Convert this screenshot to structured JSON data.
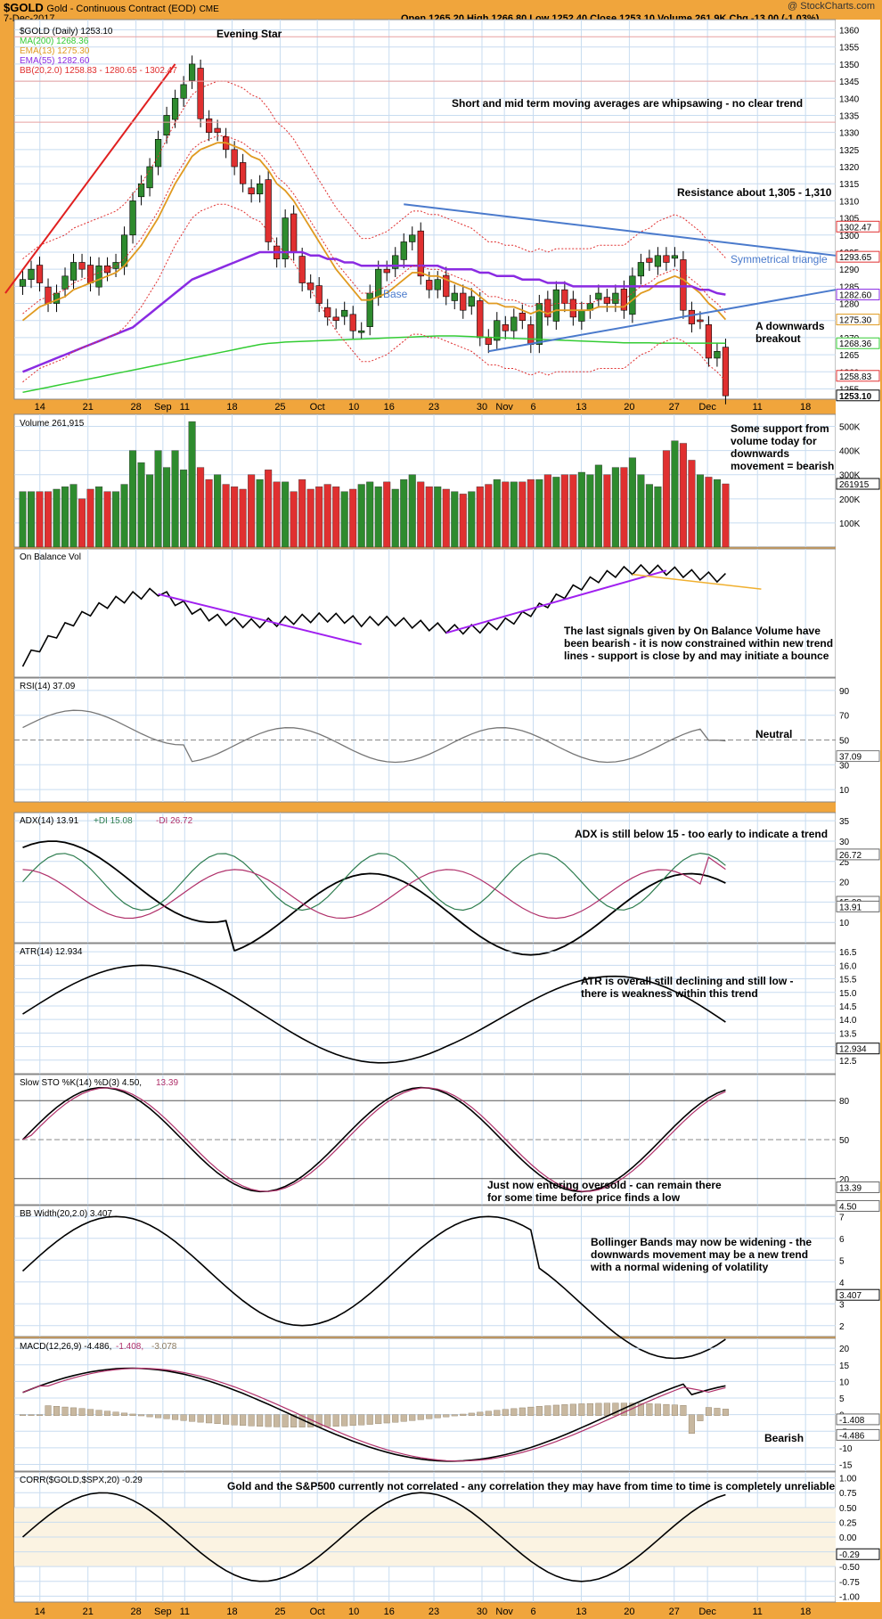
{
  "header": {
    "symbol": "$GOLD",
    "name": "Gold - Continuous Contract (EOD)",
    "exchange": "CME",
    "date": "7-Dec-2017",
    "quote": "Open 1265.20  High 1266.80  Low 1252.40  Close 1253.10  Volume 261.9K  Chg -13.00 (-1.03%)",
    "watermark": "@ StockCharts.com"
  },
  "colors": {
    "up": "#2e8b2e",
    "down": "#e03030",
    "ma200": "#33cc33",
    "ema13": "#e09a20",
    "ema55": "#8a2be2",
    "bb": "#e03030",
    "trend_blue": "#4a7acc",
    "purple_line": "#a020f0",
    "orange_line": "#f0b030",
    "red_line": "#e02020",
    "grid": "#c8dcf0"
  },
  "x_axis": {
    "labels": [
      "14",
      "21",
      "28",
      "Sep",
      "11",
      "18",
      "25",
      "Oct",
      "10",
      "16",
      "23",
      "30",
      "Nov",
      "6",
      "13",
      "20",
      "27",
      "Dec",
      "11",
      "18"
    ]
  },
  "panels": {
    "price": {
      "legend": [
        "$GOLD (Daily) 1253.10",
        "MA(200) 1268.36",
        "EMA(13) 1275.30",
        "EMA(55) 1282.60",
        "BB(20,2.0) 1258.83 - 1280.65 - 1302.47"
      ],
      "ticks": [
        "1360",
        "1355",
        "1350",
        "1345",
        "1340",
        "1335",
        "1330",
        "1325",
        "1320",
        "1315",
        "1310",
        "1305",
        "1300",
        "1295",
        "1290",
        "1285",
        "1280",
        "1275",
        "1270",
        "1265",
        "1260",
        "1255"
      ],
      "right_badges": [
        "1302.47",
        "1293.65",
        "1282.60",
        "1275.30",
        "1268.36",
        "1258.83",
        "1253.10"
      ],
      "annotations": {
        "evening_star": "Evening Star",
        "whipsaw": "Short and mid term moving averages are whipsawing - no clear trend",
        "resistance": "Resistance about 1,305 - 1,310",
        "triangle": "Symmetrical triangle",
        "base": "Base",
        "breakout_1": "A downwards",
        "breakout_2": "breakout"
      }
    },
    "volume": {
      "legend": "Volume 261,915",
      "ticks": [
        "500K",
        "400K",
        "300K",
        "200K",
        "100K"
      ],
      "badge": "261915",
      "note": [
        "Some support from",
        "volume today for",
        "downwards",
        "movement = bearish"
      ]
    },
    "obv": {
      "legend": "On Balance Vol",
      "note": [
        "The last signals given by On Balance Volume have",
        "been bearish - it is now constrained within new trend",
        "lines - support is close by and may initiate a bounce"
      ]
    },
    "rsi": {
      "legend": "RSI(14) 37.09",
      "ticks": [
        "90",
        "70",
        "50",
        "30",
        "10"
      ],
      "badge": "37.09",
      "note": "Neutral"
    },
    "adx": {
      "legend_adx": "ADX(14) 13.91",
      "legend_pdi": "+DI 15.08",
      "legend_mdi": "-DI 26.72",
      "ticks": [
        "35",
        "30",
        "25",
        "20",
        "15",
        "10"
      ],
      "badges": [
        "26.72",
        "15.08",
        "13.91"
      ],
      "note": "ADX is still below 15 - too early to indicate a trend"
    },
    "atr": {
      "legend": "ATR(14) 12.934",
      "ticks": [
        "16.5",
        "16.0",
        "15.5",
        "15.0",
        "14.5",
        "14.0",
        "13.5",
        "13.0",
        "12.5"
      ],
      "badge": "12.934",
      "note": [
        "ATR is overall still declining and still low -",
        "there is weakness within this trend"
      ]
    },
    "sto": {
      "legend_k": "Slow STO %K(14) %D(3) 4.50,",
      "legend_d": "13.39",
      "ticks": [
        "80",
        "50",
        "20"
      ],
      "badges": [
        "13.39",
        "4.50"
      ],
      "note": [
        "Just now entering oversold - can remain there",
        "for some time before price finds a low"
      ]
    },
    "bbw": {
      "legend": "BB Width(20,2.0) 3.407",
      "ticks": [
        "7",
        "6",
        "5",
        "4",
        "3",
        "2"
      ],
      "badge": "3.407",
      "note": [
        "Bollinger Bands may now be widening - the",
        "downwards movement may be a new trend",
        "with a normal widening of volatility"
      ]
    },
    "macd": {
      "legend_macd": "MACD(12,26,9) -4.486,",
      "legend_sig": "-1.408,",
      "legend_hist": "-3.078",
      "ticks": [
        "20",
        "15",
        "10",
        "5",
        "0",
        "-5",
        "-10",
        "-15"
      ],
      "badges": [
        "-1.408",
        "-4.486"
      ],
      "note": "Bearish"
    },
    "corr": {
      "legend": "CORR($GOLD,$SPX,20) -0.29",
      "ticks": [
        "1.00",
        "0.75",
        "0.50",
        "0.25",
        "0.00",
        "-0.25",
        "-0.50",
        "-0.75",
        "-1.00"
      ],
      "badge": "-0.29",
      "note": "Gold and the S&P500 currently not correlated - any correlation they may have from time to time is completely unreliable"
    }
  },
  "chart_data": {
    "type": "line",
    "title": "$GOLD Gold - Continuous Contract (EOD) CME",
    "x": [
      "2017-08-10",
      "2017-08-11",
      "2017-08-14",
      "2017-08-15",
      "2017-08-16",
      "2017-08-17",
      "2017-08-18",
      "2017-08-21",
      "2017-08-22",
      "2017-08-23",
      "2017-08-24",
      "2017-08-25",
      "2017-08-28",
      "2017-08-29",
      "2017-08-30",
      "2017-08-31",
      "2017-09-01",
      "2017-09-05",
      "2017-09-06",
      "2017-09-07",
      "2017-09-08",
      "2017-09-11",
      "2017-09-12",
      "2017-09-13",
      "2017-09-14",
      "2017-09-15",
      "2017-09-18",
      "2017-09-19",
      "2017-09-20",
      "2017-09-21",
      "2017-09-22",
      "2017-09-25",
      "2017-09-26",
      "2017-09-27",
      "2017-09-28",
      "2017-09-29",
      "2017-10-02",
      "2017-10-03",
      "2017-10-04",
      "2017-10-05",
      "2017-10-06",
      "2017-10-09",
      "2017-10-10",
      "2017-10-11",
      "2017-10-12",
      "2017-10-13",
      "2017-10-16",
      "2017-10-17",
      "2017-10-18",
      "2017-10-19",
      "2017-10-20",
      "2017-10-23",
      "2017-10-24",
      "2017-10-25",
      "2017-10-26",
      "2017-10-27",
      "2017-10-30",
      "2017-10-31",
      "2017-11-01",
      "2017-11-02",
      "2017-11-03",
      "2017-11-06",
      "2017-11-07",
      "2017-11-08",
      "2017-11-09",
      "2017-11-10",
      "2017-11-13",
      "2017-11-14",
      "2017-11-15",
      "2017-11-16",
      "2017-11-17",
      "2017-11-20",
      "2017-11-21",
      "2017-11-22",
      "2017-11-24",
      "2017-11-27",
      "2017-11-28",
      "2017-11-29",
      "2017-11-30",
      "2017-12-01",
      "2017-12-04",
      "2017-12-05",
      "2017-12-06",
      "2017-12-07"
    ],
    "series": [
      {
        "name": "$GOLD",
        "values": [
          1287,
          1290,
          1286,
          1280,
          1283,
          1288,
          1292,
          1290,
          1286,
          1291,
          1289,
          1292,
          1300,
          1310,
          1315,
          1320,
          1328,
          1335,
          1340,
          1344,
          1350,
          1334,
          1330,
          1330,
          1325,
          1320,
          1315,
          1312,
          1315,
          1298,
          1293,
          1305,
          1295,
          1286,
          1284,
          1280,
          1276,
          1275,
          1278,
          1272,
          1272,
          1283,
          1290,
          1289,
          1294,
          1298,
          1300,
          1288,
          1284,
          1287,
          1282,
          1283,
          1278,
          1282,
          1270,
          1268,
          1275,
          1272,
          1276,
          1275,
          1268,
          1280,
          1276,
          1284,
          1280,
          1276,
          1278,
          1280,
          1283,
          1280,
          1283,
          1278,
          1288,
          1292,
          1292,
          1294,
          1292,
          1294,
          1278,
          1274,
          1275,
          1264,
          1266,
          1253
        ]
      },
      {
        "name": "MA(200)",
        "values": [
          1254,
          1254.5,
          1255,
          1255.5,
          1256,
          1256.5,
          1257,
          1257.5,
          1258,
          1258.5,
          1259,
          1259.5,
          1260,
          1260.5,
          1261,
          1261.5,
          1262,
          1262.5,
          1263,
          1263.5,
          1264,
          1264.5,
          1265,
          1265.5,
          1266,
          1266.5,
          1267,
          1267.5,
          1268,
          1268.3,
          1268.5,
          1268.7,
          1268.8,
          1268.9,
          1269,
          1269.1,
          1269.2,
          1269.3,
          1269.4,
          1269.5,
          1269.6,
          1269.7,
          1269.8,
          1269.9,
          1270,
          1270.1,
          1270.2,
          1270.3,
          1270.4,
          1270.5,
          1270.5,
          1270.5,
          1270.4,
          1270.3,
          1270.2,
          1270.1,
          1270,
          1269.9,
          1269.8,
          1269.7,
          1269.6,
          1269.5,
          1269.4,
          1269.3,
          1269.2,
          1269.1,
          1269,
          1268.9,
          1268.8,
          1268.7,
          1268.6,
          1268.5,
          1268.5,
          1268.5,
          1268.5,
          1268.4,
          1268.4,
          1268.4,
          1268.4,
          1268.4,
          1268.4,
          1268.4,
          1268.4,
          1268.36
        ]
      },
      {
        "name": "EMA(13)",
        "values": [
          1275,
          1277,
          1279,
          1280,
          1281,
          1282,
          1284,
          1285,
          1286,
          1287,
          1288,
          1289,
          1291,
          1294,
          1297,
          1301,
          1305,
          1310,
          1315,
          1319,
          1323,
          1325,
          1326,
          1327,
          1327,
          1326,
          1325,
          1323,
          1322,
          1319,
          1315,
          1313,
          1310,
          1306,
          1302,
          1298,
          1294,
          1290,
          1287,
          1284,
          1281,
          1281,
          1282,
          1283,
          1285,
          1287,
          1289,
          1289,
          1288,
          1288,
          1287,
          1286,
          1285,
          1284,
          1282,
          1280,
          1280,
          1279,
          1279,
          1278,
          1277,
          1278,
          1277,
          1278,
          1278,
          1278,
          1278,
          1278,
          1279,
          1279,
          1279,
          1279,
          1281,
          1283,
          1284,
          1286,
          1287,
          1288,
          1287,
          1285,
          1283,
          1280,
          1278,
          1275.3
        ]
      },
      {
        "name": "EMA(55)",
        "values": [
          1260,
          1261,
          1262,
          1263,
          1264,
          1265,
          1266,
          1267,
          1268,
          1269,
          1270,
          1271,
          1272,
          1273,
          1275,
          1277,
          1279,
          1281,
          1283,
          1285,
          1287,
          1288,
          1289,
          1290,
          1291,
          1292,
          1293,
          1294,
          1295,
          1295,
          1295,
          1295,
          1295,
          1295,
          1294,
          1294,
          1293,
          1293,
          1292,
          1292,
          1291,
          1291,
          1291,
          1291,
          1291,
          1291,
          1291,
          1291,
          1291,
          1291,
          1290,
          1290,
          1290,
          1290,
          1289,
          1289,
          1288,
          1288,
          1288,
          1287,
          1287,
          1287,
          1286,
          1286,
          1286,
          1285,
          1285,
          1285,
          1285,
          1285,
          1285,
          1285,
          1285,
          1285,
          1285,
          1285,
          1285,
          1285,
          1285,
          1285,
          1284,
          1284,
          1283,
          1282.6
        ]
      },
      {
        "name": "Volume",
        "values": [
          230,
          230,
          230,
          230,
          240,
          250,
          260,
          200,
          240,
          250,
          230,
          230,
          260,
          400,
          350,
          300,
          400,
          330,
          400,
          320,
          520,
          330,
          280,
          300,
          260,
          250,
          240,
          300,
          280,
          320,
          270,
          270,
          230,
          280,
          240,
          250,
          260,
          250,
          230,
          240,
          260,
          270,
          250,
          270,
          240,
          280,
          300,
          270,
          250,
          250,
          240,
          230,
          220,
          230,
          250,
          260,
          280,
          270,
          270,
          270,
          280,
          280,
          300,
          290,
          300,
          300,
          310,
          300,
          340,
          300,
          330,
          330,
          370,
          300,
          260,
          250,
          400,
          440,
          430,
          360,
          300,
          290,
          280,
          262
        ]
      }
    ],
    "xlabel": "",
    "ylabel": "",
    "ylim": [
      1252,
      1363
    ],
    "grid": true,
    "legend": "top-left"
  }
}
